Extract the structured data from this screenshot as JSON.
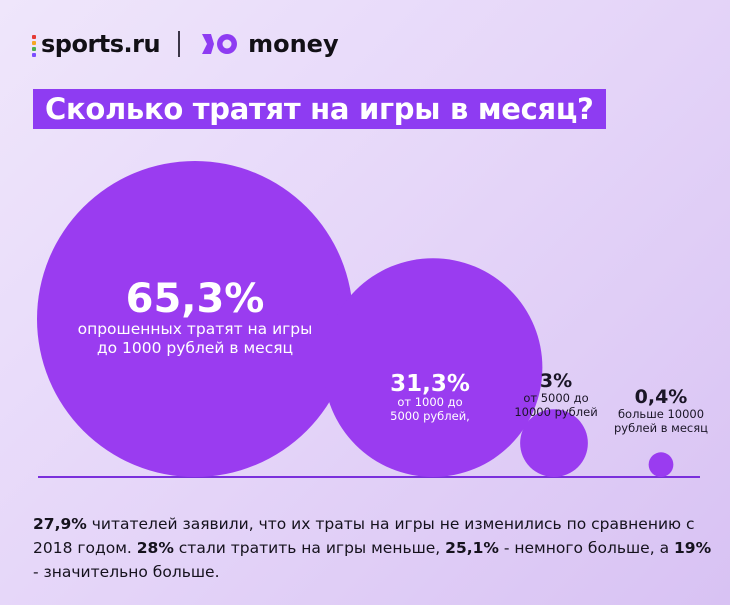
{
  "header": {
    "brand_left": "sports.ru",
    "brand_right": "money",
    "dot_colors": [
      "#e53935",
      "#f5a623",
      "#4caf50",
      "#7b4dff"
    ]
  },
  "title": "Сколько тратят на игры в месяц?",
  "colors": {
    "accent": "#8e3cf2",
    "bubble": "#9a3cf0",
    "baseline": "#7a2fdc"
  },
  "chart_data": {
    "type": "bubble",
    "title": "Сколько тратят на игры в месяц?",
    "categories": [
      "до 1000 рублей",
      "от 1000 до 5000 рублей",
      "от 5000 до 10000 рублей",
      "больше 10000 рублей"
    ],
    "values": [
      65.3,
      31.3,
      3,
      0.4
    ],
    "unit": "%",
    "labels": [
      {
        "pct": "65,3%",
        "line1": "опрошенных тратят на игры",
        "line2": "до 1000 рублей в месяц"
      },
      {
        "pct": "31,3%",
        "line1": "от 1000 до",
        "line2": "5000 рублей,"
      },
      {
        "pct": "3%",
        "line1": "от 5000 до",
        "line2": "10000 рублей"
      },
      {
        "pct": "0,4%",
        "line1": "больше 10000",
        "line2": "рублей в месяц"
      }
    ]
  },
  "footer": {
    "p1_bold": "27,9%",
    "p1_text": " читателей заявили, что их траты на игры не изменились по сравнению с 2018 годом. ",
    "p2_bold": "28%",
    "p2_text": " стали тратить на игры меньше, ",
    "p3_bold": "25,1%",
    "p3_text": " - немного больше, а ",
    "p4_bold": "19%",
    "p4_text": " - значительно больше."
  }
}
